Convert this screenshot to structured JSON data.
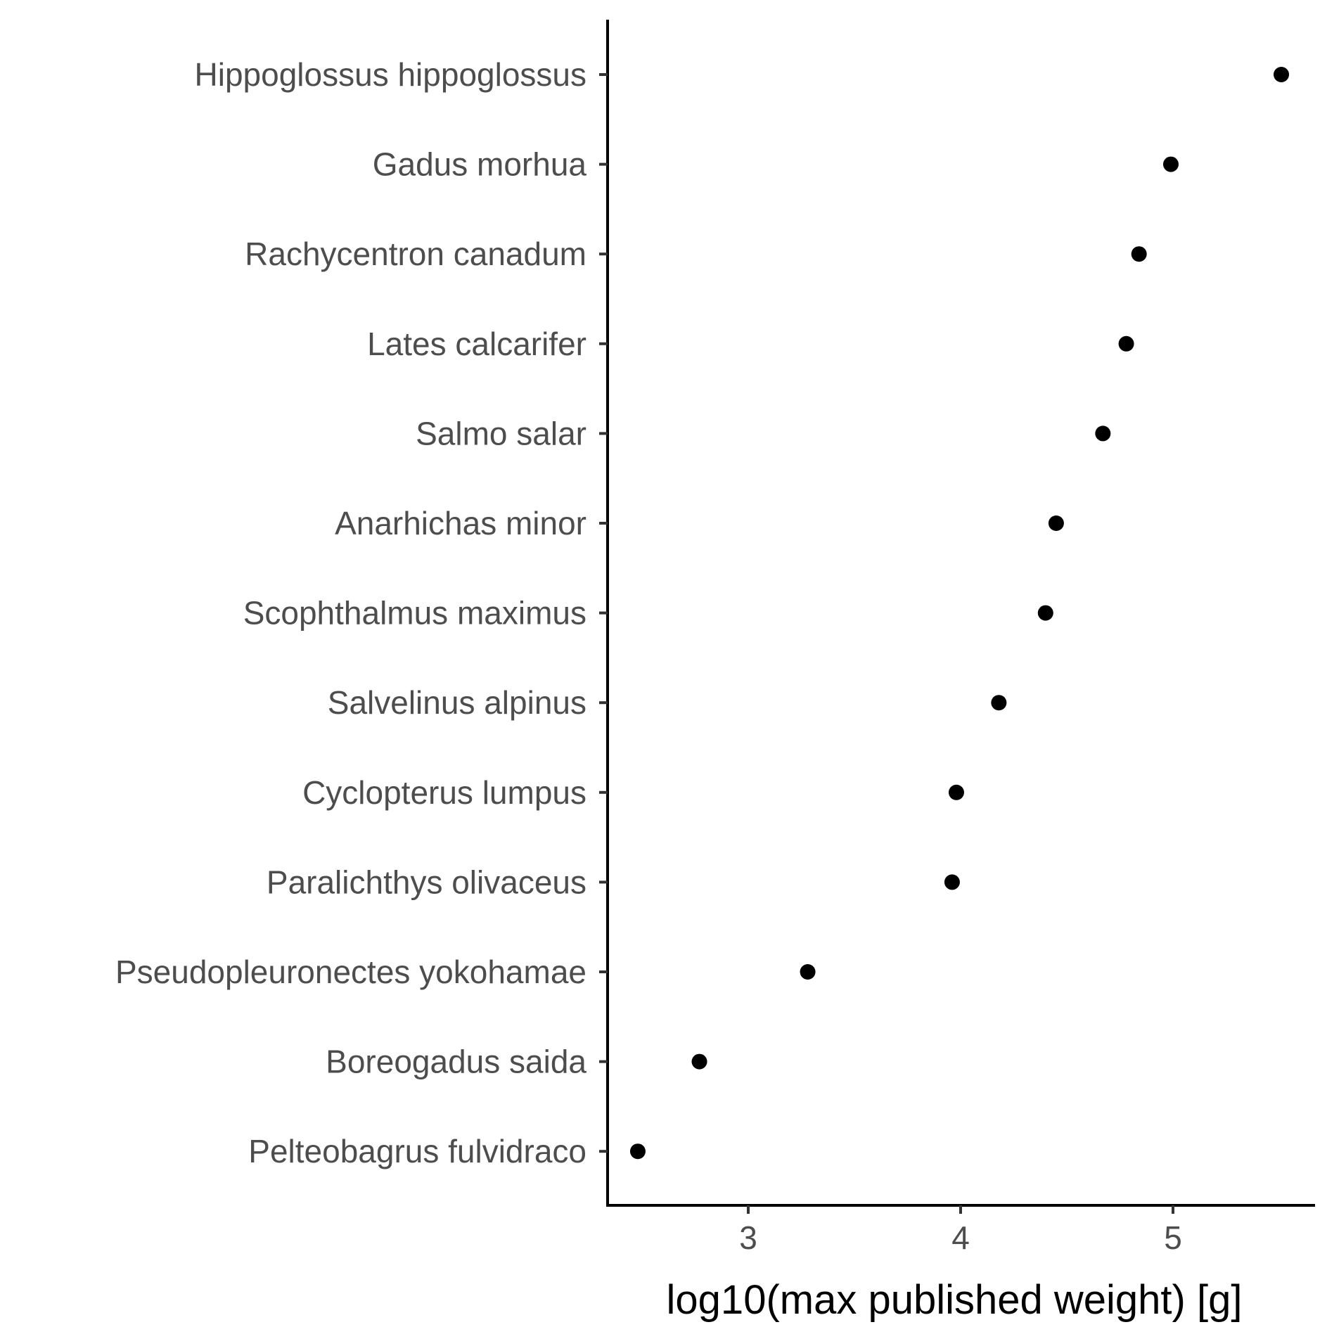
{
  "chart_data": {
    "type": "scatter",
    "title": "",
    "xlabel": "log10(max published weight) [g]",
    "ylabel": "",
    "xlim": [
      2.33,
      5.66
    ],
    "xticks": [
      3,
      4,
      5
    ],
    "grid": false,
    "legend": "none",
    "point_color": "#000000",
    "categories": [
      "Hippoglossus hippoglossus",
      "Gadus morhua",
      "Rachycentron canadum",
      "Lates calcarifer",
      "Salmo salar",
      "Anarhichas minor",
      "Scophthalmus maximus",
      "Salvelinus alpinus",
      "Cyclopterus lumpus",
      "Paralichthys olivaceus",
      "Pseudopleuronectes yokohamae",
      "Boreogadus saida",
      "Pelteobagrus fulvidraco"
    ],
    "values": [
      5.51,
      4.99,
      4.84,
      4.78,
      4.67,
      4.45,
      4.4,
      4.18,
      3.98,
      3.96,
      3.28,
      2.77,
      2.48
    ]
  }
}
